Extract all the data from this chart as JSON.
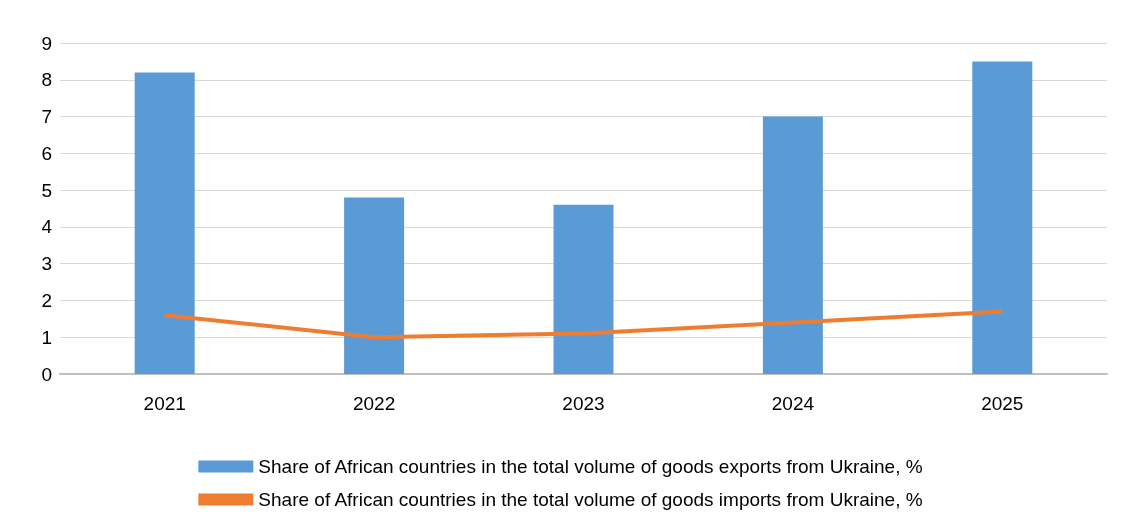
{
  "chart_data": {
    "type": "bar",
    "categories": [
      "2021",
      "2022",
      "2023",
      "2024",
      "2025"
    ],
    "series": [
      {
        "name": "Share of African countries in the total volume of goods exports from Ukraine, %",
        "color": "#5b9bd5",
        "values": [
          8.2,
          4.8,
          4.6,
          7.0,
          8.5
        ]
      },
      {
        "name": "Share of African countries in the total volume of goods imports from Ukraine, %",
        "type": "line",
        "color": "#ed7d31",
        "values": [
          1.6,
          1.0,
          1.1,
          1.4,
          1.7
        ]
      }
    ],
    "ylim": [
      0,
      9
    ],
    "yticks": [
      0,
      1,
      2,
      3,
      4,
      5,
      6,
      7,
      8,
      9
    ],
    "grid": "y",
    "legend": "bottom",
    "marker": "none"
  }
}
